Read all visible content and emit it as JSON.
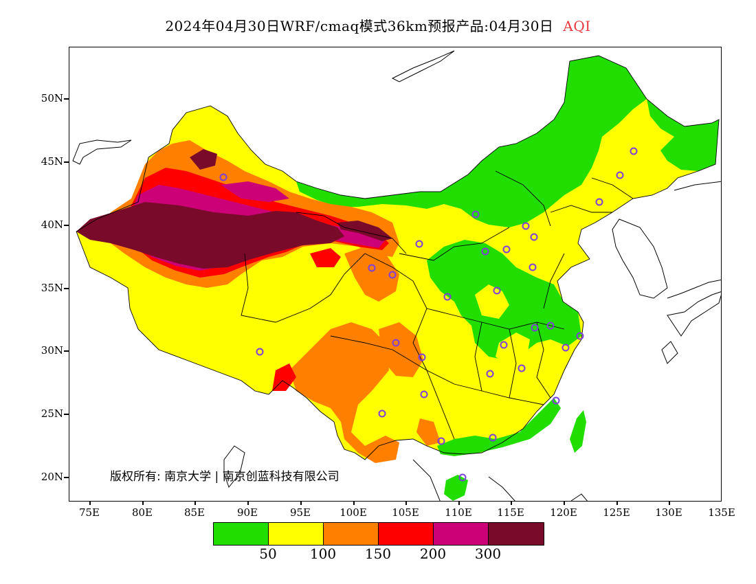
{
  "title": {
    "text": "2024年04月30日WRF/cmaq模式36km预报产品:04月30日",
    "variable": "AQI"
  },
  "axes": {
    "y_labels": [
      "50N",
      "45N",
      "40N",
      "35N",
      "30N",
      "25N",
      "20N"
    ],
    "x_labels": [
      "75E",
      "80E",
      "85E",
      "90E",
      "95E",
      "100E",
      "105E",
      "110E",
      "115E",
      "120E",
      "125E",
      "130E",
      "135E"
    ]
  },
  "copyright": "版权所有: 南京大学 | 南京创蓝科技有限公司",
  "legend": {
    "colors": [
      "#22dd00",
      "#ffff00",
      "#ff8000",
      "#ff0000",
      "#cc0077",
      "#7a0a2a"
    ],
    "labels": [
      "50",
      "100",
      "150",
      "200",
      "300"
    ]
  },
  "map": {
    "type": "filled-contour",
    "lon_range": [
      73,
      135
    ],
    "lat_range": [
      18,
      54
    ],
    "colors": {
      "good": "#22dd00",
      "moderate": "#ffff00",
      "usg": "#ff8000",
      "unhealthy": "#ff0000",
      "very_unhealthy": "#cc0077",
      "hazardous": "#7a0a2a"
    },
    "station_marker_color": "#7f3fd9",
    "station_count": 31
  }
}
